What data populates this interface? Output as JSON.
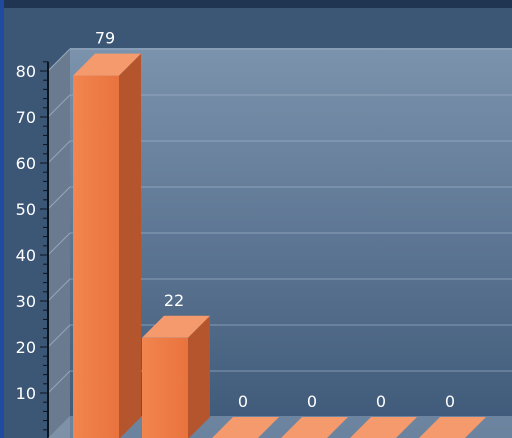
{
  "chart_data": {
    "type": "bar",
    "style": "3d",
    "categories": [
      "",
      "",
      "",
      "",
      "",
      ""
    ],
    "values": [
      79,
      22,
      0,
      0,
      0,
      0
    ],
    "data_labels": [
      "79",
      "22",
      "0",
      "0",
      "0",
      "0"
    ],
    "yticks": [
      "10",
      "20",
      "30",
      "40",
      "50",
      "60",
      "70",
      "80"
    ],
    "ylim": [
      0,
      90
    ],
    "grid": true,
    "legend": "none",
    "title": "",
    "xlabel": "",
    "ylabel": ""
  },
  "colors": {
    "bar_front": "#f07a4a",
    "bar_side": "#b4552d",
    "bar_top": "#f49a6c",
    "background_top": "#1d3a5f",
    "background_bottom": "#3f5f84",
    "grid": "#9fb2c8",
    "text": "#ffffff",
    "left_wall": "#6a7a8c",
    "floor": "#8aa0b8"
  }
}
